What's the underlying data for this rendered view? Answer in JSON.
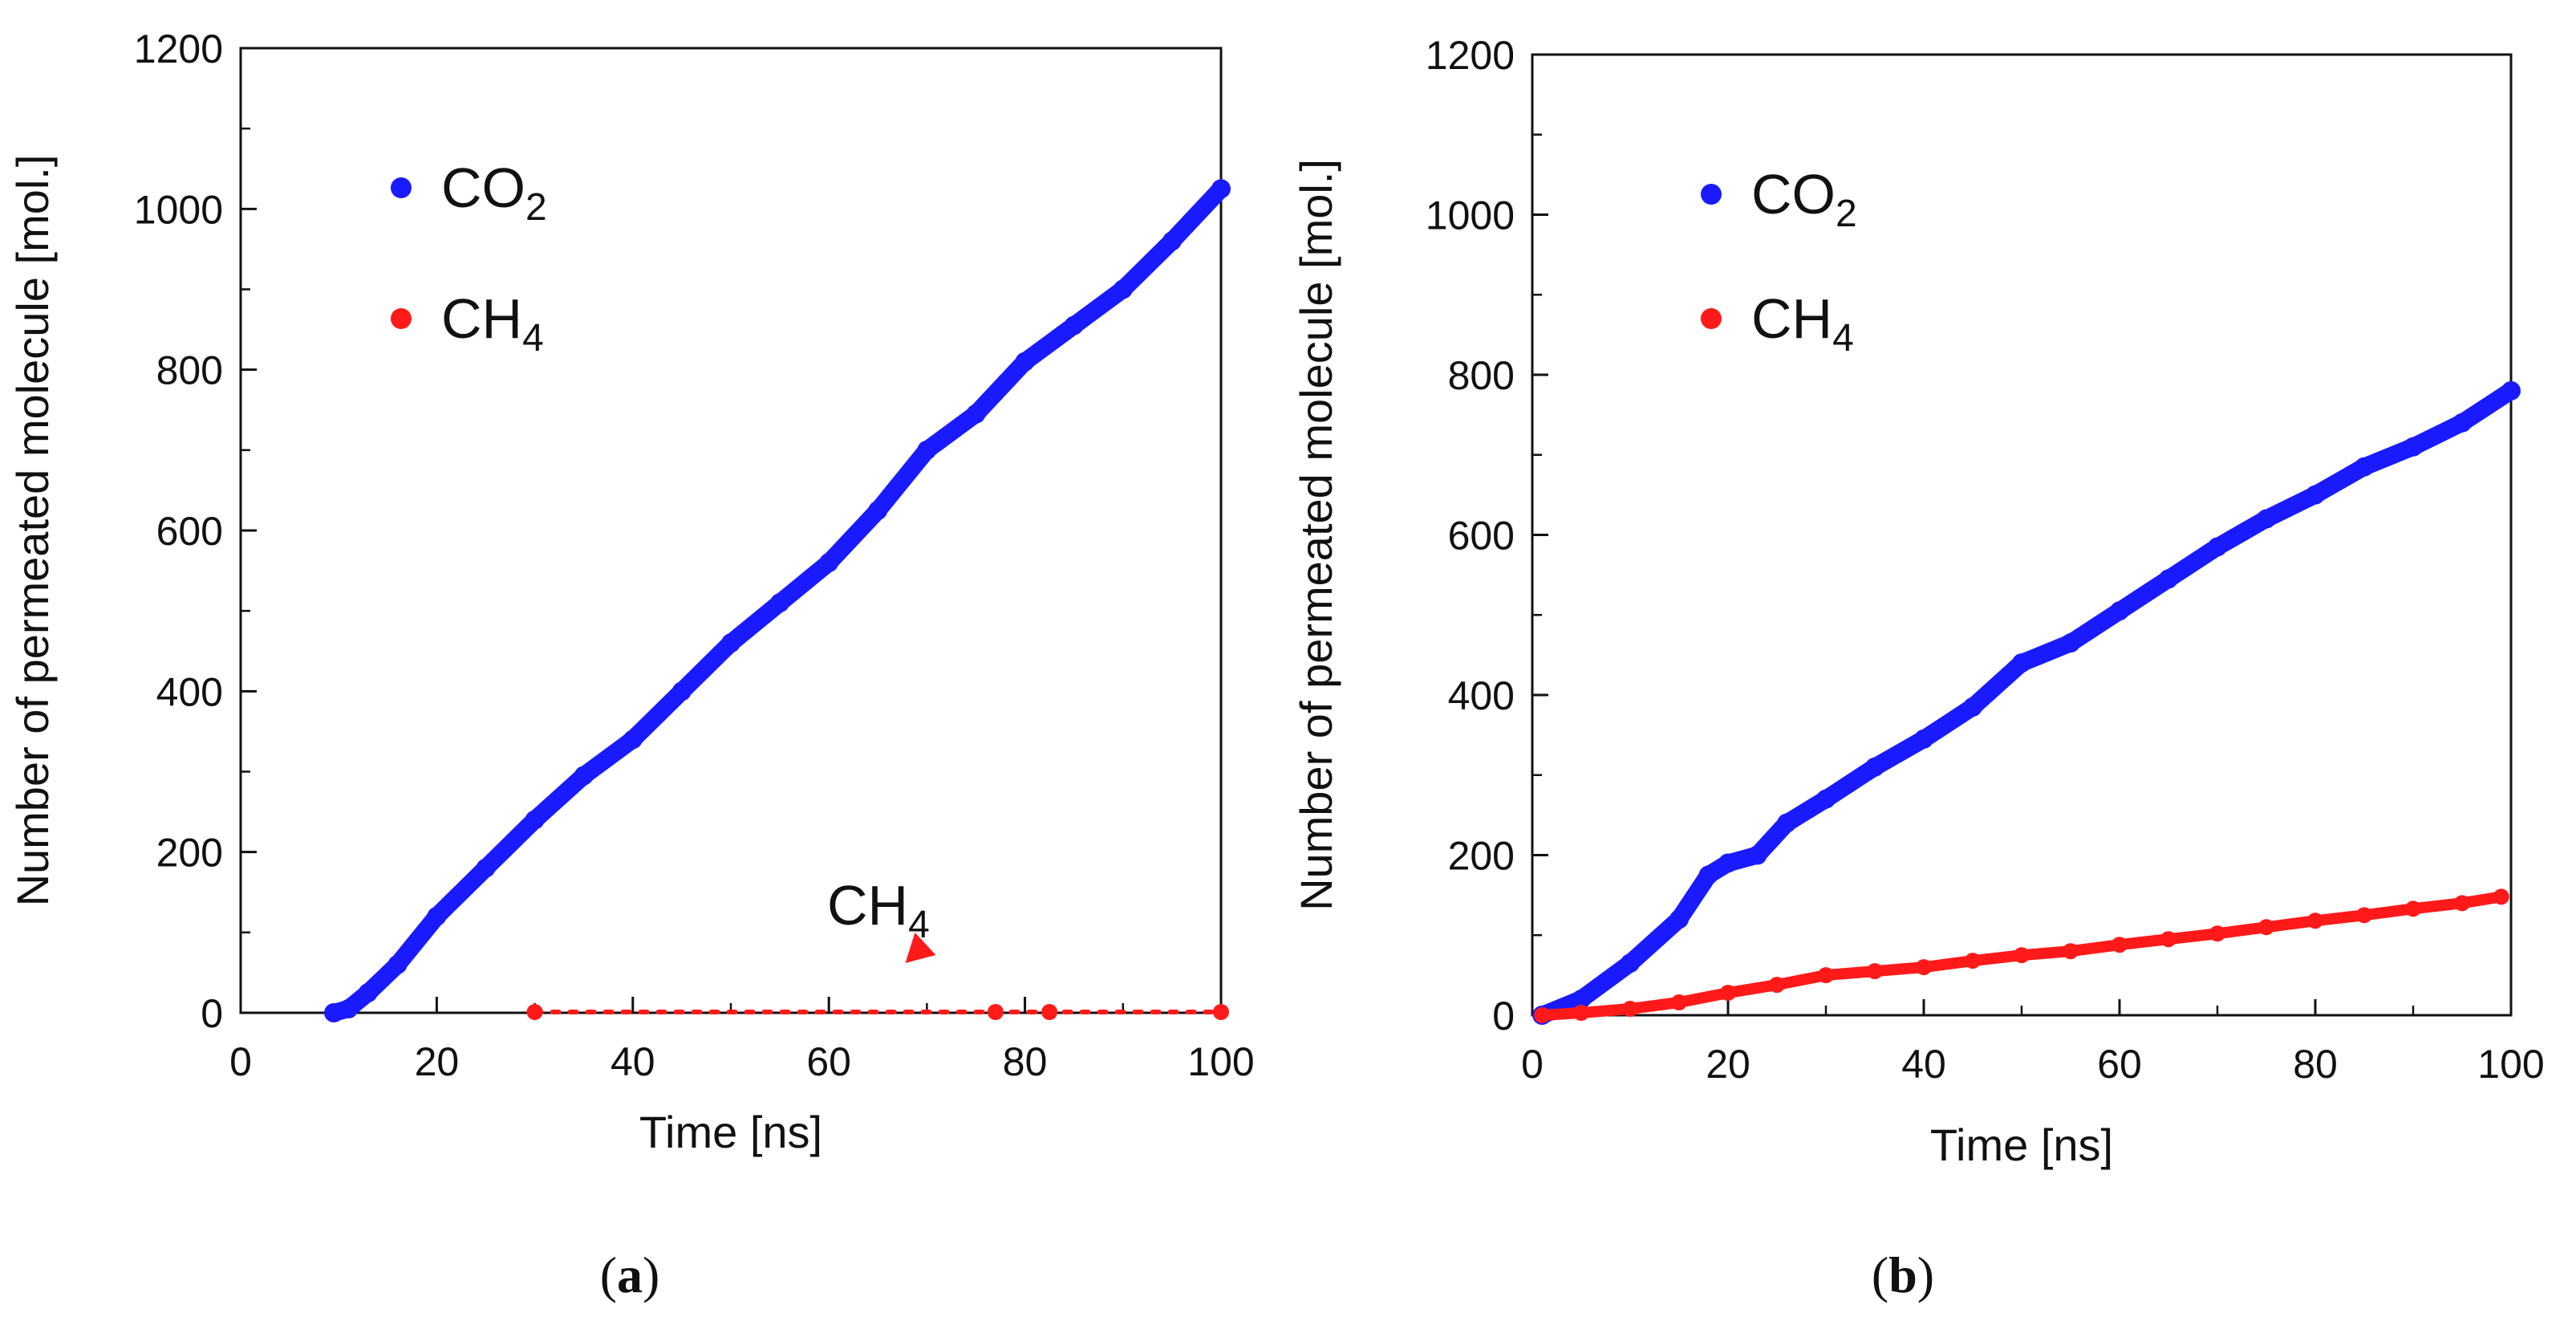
{
  "chart_data": [
    {
      "type": "scatter",
      "panel_label": "(a)",
      "panel_label_bold": "a",
      "xlabel": "Time [ns]",
      "ylabel": "Number of permeated molecule [mol.]",
      "xlim": [
        0,
        100
      ],
      "ylim": [
        0,
        1200
      ],
      "xticks": [
        0,
        20,
        40,
        60,
        80,
        100
      ],
      "yticks": [
        0,
        200,
        400,
        600,
        800,
        1000,
        1200
      ],
      "legend_position": "top-left",
      "colors": {
        "CO2": "#1a1aff",
        "CH4": "#ff1a1a"
      },
      "annotation": {
        "text": "CH",
        "sub": "4",
        "x": 68,
        "y": 70,
        "target_x": 66,
        "target_y": 4
      },
      "series": [
        {
          "name": "CO2",
          "label": "CO",
          "sub": "2",
          "color": "#1a1aff",
          "points": [
            [
              9.5,
              0
            ],
            [
              11,
              5
            ],
            [
              13,
              25
            ],
            [
              16,
              60
            ],
            [
              20,
              120
            ],
            [
              25,
              180
            ],
            [
              30,
              240
            ],
            [
              35,
              295
            ],
            [
              40,
              340
            ],
            [
              45,
              400
            ],
            [
              50,
              460
            ],
            [
              55,
              510
            ],
            [
              60,
              560
            ],
            [
              65,
              625
            ],
            [
              70,
              700
            ],
            [
              75,
              745
            ],
            [
              80,
              810
            ],
            [
              85,
              855
            ],
            [
              90,
              900
            ],
            [
              95,
              960
            ],
            [
              100,
              1025
            ]
          ]
        },
        {
          "name": "CH4",
          "label": "CH",
          "sub": "4",
          "color": "#ff1a1a",
          "segments": [
            [
              [
                30,
                1
              ],
              [
                100,
                1
              ]
            ]
          ],
          "points": [
            [
              30,
              1
            ],
            [
              77,
              1
            ],
            [
              82.5,
              1
            ],
            [
              100,
              1
            ]
          ]
        }
      ]
    },
    {
      "type": "scatter",
      "panel_label": "(b)",
      "panel_label_bold": "b",
      "xlabel": "Time [ns]",
      "ylabel": "Number of permeated molecule [mol.]",
      "xlim": [
        0,
        100
      ],
      "ylim": [
        0,
        1200
      ],
      "xticks": [
        0,
        20,
        40,
        60,
        80,
        100
      ],
      "yticks": [
        0,
        200,
        400,
        600,
        800,
        1000,
        1200
      ],
      "legend_position": "top-left",
      "colors": {
        "CO2": "#1a1aff",
        "CH4": "#ff1a1a"
      },
      "series": [
        {
          "name": "CO2",
          "label": "CO",
          "sub": "2",
          "color": "#1a1aff",
          "points": [
            [
              1,
              0
            ],
            [
              5,
              20
            ],
            [
              10,
              65
            ],
            [
              15,
              120
            ],
            [
              18,
              175
            ],
            [
              20,
              190
            ],
            [
              23,
              200
            ],
            [
              26,
              240
            ],
            [
              30,
              270
            ],
            [
              35,
              310
            ],
            [
              40,
              345
            ],
            [
              45,
              385
            ],
            [
              50,
              440
            ],
            [
              55,
              465
            ],
            [
              60,
              505
            ],
            [
              65,
              545
            ],
            [
              70,
              585
            ],
            [
              75,
              620
            ],
            [
              80,
              650
            ],
            [
              85,
              685
            ],
            [
              90,
              710
            ],
            [
              95,
              740
            ],
            [
              100,
              780
            ]
          ]
        },
        {
          "name": "CH4",
          "label": "CH",
          "sub": "4",
          "color": "#ff1a1a",
          "points": [
            [
              1,
              0
            ],
            [
              5,
              3
            ],
            [
              10,
              8
            ],
            [
              15,
              16
            ],
            [
              20,
              28
            ],
            [
              25,
              38
            ],
            [
              30,
              50
            ],
            [
              35,
              55
            ],
            [
              40,
              60
            ],
            [
              45,
              68
            ],
            [
              50,
              75
            ],
            [
              55,
              80
            ],
            [
              60,
              88
            ],
            [
              65,
              95
            ],
            [
              70,
              102
            ],
            [
              75,
              110
            ],
            [
              80,
              118
            ],
            [
              85,
              125
            ],
            [
              90,
              133
            ],
            [
              95,
              140
            ],
            [
              99,
              148
            ]
          ]
        }
      ]
    }
  ]
}
